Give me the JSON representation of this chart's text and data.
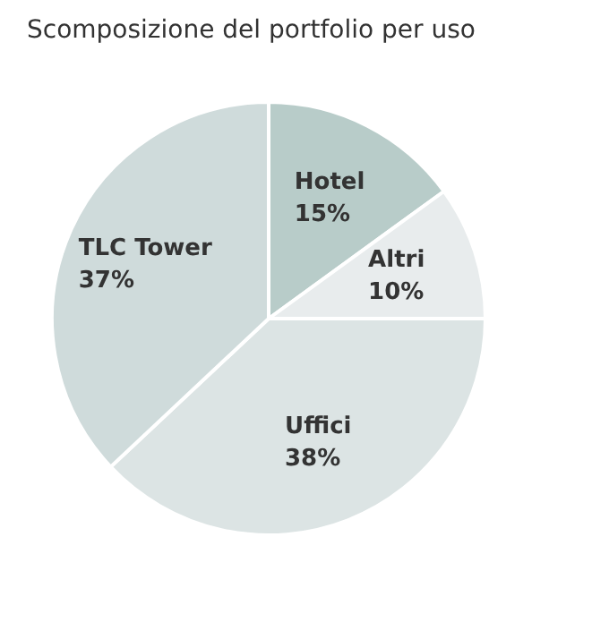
{
  "chart_data": {
    "type": "pie",
    "title": "Scomposizione del portfolio per uso",
    "categories": [
      "Hotel",
      "Altri",
      "Uffici",
      "TLC Tower"
    ],
    "values": [
      15,
      10,
      38,
      37
    ],
    "value_labels": [
      "15%",
      "10%",
      "38%",
      "37%"
    ],
    "colors": [
      "#b8ccc9",
      "#e8eced",
      "#dce4e4",
      "#cfdbdb"
    ],
    "legend": false
  }
}
